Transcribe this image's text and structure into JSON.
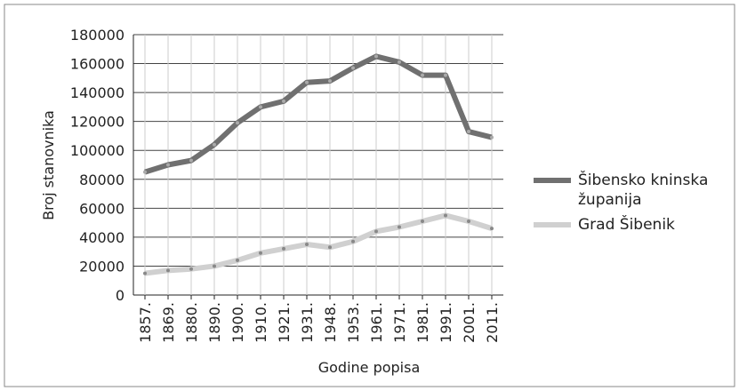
{
  "chart_data": {
    "type": "line",
    "x_label": "Godine popisa",
    "y_label": "Broj stanovnika",
    "categories": [
      "1857.",
      "1869.",
      "1880.",
      "1890.",
      "1900.",
      "1910.",
      "1921.",
      "1931.",
      "1948.",
      "1953.",
      "1961.",
      "1971.",
      "1981.",
      "1991.",
      "2001.",
      "2011."
    ],
    "series": [
      {
        "name": "Šibensko kninska županija",
        "color": "#707070",
        "values": [
          85000,
          90000,
          93000,
          104000,
          119000,
          130000,
          134000,
          147000,
          148000,
          157000,
          165000,
          161000,
          152000,
          152000,
          113000,
          109000
        ]
      },
      {
        "name": "Grad Šibenik",
        "color": "#d0d0d0",
        "values": [
          15000,
          17000,
          18000,
          20000,
          24000,
          29000,
          32000,
          35000,
          33000,
          37000,
          44000,
          47000,
          51000,
          55000,
          51000,
          46000
        ]
      }
    ],
    "ylim": [
      0,
      180000
    ],
    "yticks": [
      0,
      20000,
      40000,
      60000,
      80000,
      100000,
      120000,
      140000,
      160000,
      180000
    ],
    "grid": true,
    "legend": "right"
  }
}
